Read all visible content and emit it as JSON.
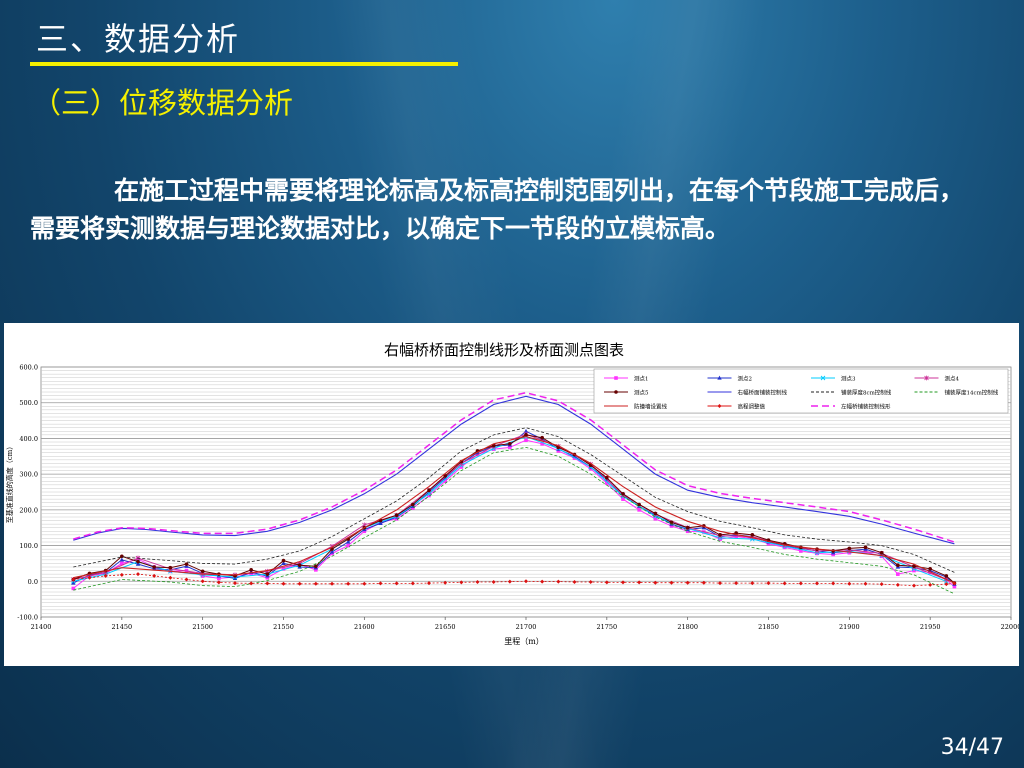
{
  "slide": {
    "section_title": "三、数据分析",
    "subsection_title": "（三）位移数据分析",
    "paragraph": "在施工过程中需要将理论标高及标高控制范围列出，在每个节段施工完成后，需要将实测数据与理论数据对比，以确定下一节段的立模标高。",
    "page_number": "34/47",
    "colors": {
      "title_underline": "#f5f000",
      "subtitle": "#f5f000",
      "background": "#12456b"
    }
  },
  "chart_data": {
    "type": "line",
    "title": "右幅桥桥面控制线形及桥面测点图表",
    "xlabel": "里程（m）",
    "ylabel": "至基准直线的高度（cm）",
    "xlim": [
      21400,
      22000
    ],
    "ylim": [
      -100,
      600
    ],
    "x_ticks": [
      21400,
      21450,
      21500,
      21550,
      21600,
      21650,
      21700,
      21750,
      21800,
      21850,
      21900,
      21950,
      22000
    ],
    "y_ticks": [
      -100,
      0,
      100,
      200,
      300,
      400,
      500,
      600
    ],
    "y_tick_labels": [
      "-100.0",
      "0.0",
      "100.0",
      "200.0",
      "300.0",
      "400.0",
      "500.0",
      "600.0"
    ],
    "grid": true,
    "legend_position": "top-right",
    "series": [
      {
        "name": "测点1",
        "color": "#ff33ff",
        "style": "marker",
        "marker": "square",
        "x": [
          21420,
          21430,
          21440,
          21450,
          21460,
          21470,
          21480,
          21490,
          21500,
          21510,
          21520,
          21530,
          21540,
          21550,
          21560,
          21570,
          21580,
          21590,
          21600,
          21610,
          21620,
          21630,
          21640,
          21650,
          21660,
          21670,
          21680,
          21690,
          21700,
          21710,
          21720,
          21730,
          21740,
          21750,
          21760,
          21770,
          21780,
          21790,
          21800,
          21810,
          21820,
          21830,
          21840,
          21850,
          21860,
          21870,
          21880,
          21890,
          21900,
          21910,
          21920,
          21930,
          21940,
          21950,
          21960,
          21965
        ],
        "y": [
          -20,
          15,
          22,
          50,
          62,
          40,
          28,
          30,
          15,
          8,
          12,
          22,
          10,
          35,
          48,
          32,
          78,
          100,
          140,
          165,
          175,
          205,
          240,
          280,
          320,
          355,
          370,
          375,
          395,
          385,
          365,
          345,
          315,
          275,
          230,
          200,
          175,
          155,
          140,
          138,
          118,
          125,
          120,
          105,
          95,
          85,
          78,
          75,
          80,
          82,
          70,
          20,
          30,
          25,
          5,
          -15
        ]
      },
      {
        "name": "测点2",
        "color": "#2233cc",
        "style": "marker",
        "marker": "triangle",
        "x": [
          21420,
          21430,
          21440,
          21450,
          21460,
          21470,
          21480,
          21490,
          21500,
          21510,
          21520,
          21530,
          21540,
          21550,
          21560,
          21570,
          21580,
          21590,
          21600,
          21610,
          21620,
          21630,
          21640,
          21650,
          21660,
          21670,
          21680,
          21690,
          21700,
          21710,
          21720,
          21730,
          21740,
          21750,
          21760,
          21770,
          21780,
          21790,
          21800,
          21810,
          21820,
          21830,
          21840,
          21850,
          21860,
          21870,
          21880,
          21890,
          21900,
          21910,
          21920,
          21930,
          21940,
          21950,
          21960,
          21965
        ],
        "y": [
          -5,
          18,
          25,
          60,
          48,
          35,
          32,
          42,
          22,
          15,
          8,
          25,
          15,
          50,
          40,
          38,
          82,
          110,
          145,
          162,
          180,
          210,
          250,
          290,
          330,
          360,
          378,
          382,
          420,
          398,
          370,
          350,
          320,
          285,
          240,
          210,
          185,
          160,
          145,
          150,
          125,
          130,
          125,
          110,
          100,
          92,
          85,
          80,
          85,
          90,
          75,
          40,
          38,
          30,
          12,
          -8
        ]
      },
      {
        "name": "测点3",
        "color": "#00ccff",
        "style": "marker",
        "marker": "x",
        "x": [
          21420,
          21440,
          21460,
          21480,
          21500,
          21520,
          21540,
          21560,
          21580,
          21600,
          21620,
          21640,
          21660,
          21680,
          21700,
          21720,
          21740,
          21760,
          21780,
          21800,
          21820,
          21840,
          21860,
          21880,
          21900,
          21920,
          21940,
          21960
        ],
        "y": [
          0,
          20,
          55,
          28,
          18,
          12,
          20,
          45,
          90,
          150,
          182,
          245,
          325,
          372,
          405,
          372,
          320,
          238,
          182,
          148,
          122,
          118,
          98,
          80,
          84,
          72,
          35,
          0
        ]
      },
      {
        "name": "测点4",
        "color": "#cc3399",
        "style": "marker",
        "marker": "star",
        "x": [
          21420,
          21440,
          21460,
          21480,
          21500,
          21520,
          21540,
          21560,
          21580,
          21600,
          21620,
          21640,
          21660,
          21680,
          21700,
          21720,
          21740,
          21760,
          21780,
          21800,
          21820,
          21840,
          21860,
          21880,
          21900,
          21920,
          21940,
          21960
        ],
        "y": [
          5,
          25,
          65,
          35,
          22,
          18,
          28,
          50,
          98,
          158,
          185,
          255,
          330,
          378,
          412,
          378,
          328,
          242,
          188,
          150,
          128,
          125,
          102,
          85,
          88,
          78,
          40,
          5
        ]
      },
      {
        "name": "测点5",
        "color": "#660000",
        "style": "marker",
        "marker": "circle",
        "x": [
          21420,
          21430,
          21440,
          21450,
          21460,
          21470,
          21480,
          21490,
          21500,
          21510,
          21520,
          21530,
          21540,
          21550,
          21560,
          21570,
          21580,
          21590,
          21600,
          21610,
          21620,
          21630,
          21640,
          21650,
          21660,
          21670,
          21680,
          21690,
          21700,
          21710,
          21720,
          21730,
          21740,
          21750,
          21760,
          21770,
          21780,
          21790,
          21800,
          21810,
          21820,
          21830,
          21840,
          21850,
          21860,
          21870,
          21880,
          21890,
          21900,
          21910,
          21920,
          21930,
          21940,
          21950,
          21960,
          21965
        ],
        "y": [
          5,
          22,
          30,
          70,
          55,
          40,
          38,
          48,
          28,
          20,
          15,
          32,
          20,
          58,
          45,
          42,
          90,
          118,
          150,
          170,
          185,
          215,
          255,
          295,
          335,
          365,
          380,
          385,
          410,
          402,
          375,
          355,
          325,
          290,
          245,
          215,
          190,
          165,
          150,
          155,
          130,
          135,
          130,
          115,
          105,
          95,
          90,
          85,
          92,
          95,
          80,
          45,
          42,
          35,
          15,
          -5
        ]
      },
      {
        "name": "右幅桥面铺装控制线",
        "color": "#3333dd",
        "style": "solid",
        "x": [
          21420,
          21435,
          21450,
          21465,
          21480,
          21500,
          21520,
          21540,
          21560,
          21580,
          21600,
          21620,
          21640,
          21660,
          21680,
          21700,
          21720,
          21740,
          21760,
          21780,
          21800,
          21820,
          21840,
          21860,
          21880,
          21900,
          21920,
          21940,
          21965
        ],
        "y": [
          115,
          135,
          148,
          145,
          138,
          130,
          128,
          140,
          165,
          200,
          245,
          300,
          370,
          440,
          495,
          518,
          495,
          440,
          370,
          300,
          255,
          235,
          220,
          208,
          195,
          182,
          160,
          135,
          105
        ]
      },
      {
        "name": "铺装厚度8cm控制线",
        "color": "#222222",
        "style": "dashed",
        "x": [
          21420,
          21450,
          21480,
          21500,
          21520,
          21540,
          21560,
          21580,
          21600,
          21620,
          21640,
          21660,
          21680,
          21700,
          21720,
          21740,
          21760,
          21780,
          21800,
          21820,
          21840,
          21860,
          21880,
          21900,
          21920,
          21940,
          21965
        ],
        "y": [
          40,
          68,
          58,
          50,
          48,
          62,
          85,
          125,
          175,
          225,
          290,
          365,
          410,
          430,
          405,
          355,
          295,
          235,
          195,
          168,
          150,
          130,
          118,
          110,
          100,
          75,
          25
        ]
      },
      {
        "name": "铺装厚度14cm控制线",
        "color": "#229922",
        "style": "dashed",
        "x": [
          21420,
          21450,
          21480,
          21500,
          21520,
          21540,
          21560,
          21580,
          21600,
          21620,
          21640,
          21660,
          21680,
          21700,
          21720,
          21740,
          21760,
          21780,
          21800,
          21820,
          21840,
          21860,
          21880,
          21900,
          21920,
          21940,
          21965
        ],
        "y": [
          -25,
          5,
          -2,
          -12,
          -15,
          2,
          28,
          70,
          122,
          172,
          238,
          310,
          360,
          375,
          350,
          300,
          238,
          180,
          140,
          112,
          95,
          75,
          62,
          52,
          42,
          18,
          -35
        ]
      },
      {
        "name": "防撞墙设置线",
        "color": "#cc2222",
        "style": "solid",
        "x": [
          21420,
          21450,
          21480,
          21500,
          21520,
          21540,
          21560,
          21580,
          21600,
          21620,
          21640,
          21660,
          21680,
          21700,
          21720,
          21740,
          21760,
          21780,
          21800,
          21820,
          21840,
          21860,
          21880,
          21900,
          21920,
          21940,
          21965
        ],
        "y": [
          10,
          38,
          28,
          20,
          18,
          30,
          55,
          95,
          150,
          200,
          265,
          338,
          385,
          405,
          380,
          330,
          265,
          208,
          168,
          140,
          122,
          102,
          90,
          82,
          72,
          48,
          -5
        ]
      },
      {
        "name": "高程调整值",
        "color": "#dd1111",
        "style": "dotmarker",
        "marker": "diamond",
        "x": [
          21420,
          21430,
          21440,
          21450,
          21460,
          21470,
          21480,
          21490,
          21500,
          21510,
          21520,
          21530,
          21540,
          21550,
          21560,
          21570,
          21580,
          21590,
          21600,
          21610,
          21620,
          21630,
          21640,
          21650,
          21660,
          21670,
          21680,
          21690,
          21700,
          21710,
          21720,
          21730,
          21740,
          21750,
          21760,
          21770,
          21780,
          21790,
          21800,
          21810,
          21820,
          21830,
          21840,
          21850,
          21860,
          21870,
          21880,
          21890,
          21900,
          21910,
          21920,
          21930,
          21940,
          21950,
          21960,
          21965
        ],
        "y": [
          5,
          10,
          15,
          18,
          20,
          15,
          10,
          5,
          0,
          -3,
          -5,
          -6,
          -6,
          -7,
          -7,
          -7,
          -7,
          -7,
          -7,
          -6,
          -6,
          -6,
          -5,
          -4,
          -3,
          -2,
          -2,
          -1,
          0,
          -1,
          -1,
          -2,
          -2,
          -3,
          -3,
          -3,
          -4,
          -4,
          -4,
          -4,
          -5,
          -5,
          -5,
          -5,
          -6,
          -6,
          -6,
          -6,
          -7,
          -7,
          -8,
          -10,
          -12,
          -10,
          -8,
          -6
        ]
      },
      {
        "name": "左幅桥铺装控制线形",
        "color": "#ee22ee",
        "style": "longdash",
        "x": [
          21420,
          21435,
          21450,
          21465,
          21480,
          21500,
          21520,
          21540,
          21560,
          21580,
          21600,
          21620,
          21640,
          21660,
          21680,
          21700,
          21720,
          21740,
          21760,
          21780,
          21800,
          21820,
          21840,
          21860,
          21880,
          21900,
          21920,
          21940,
          21965
        ],
        "y": [
          118,
          138,
          150,
          148,
          142,
          134,
          134,
          146,
          172,
          208,
          255,
          312,
          382,
          452,
          508,
          528,
          505,
          452,
          382,
          312,
          268,
          246,
          232,
          220,
          208,
          195,
          172,
          146,
          110
        ]
      }
    ]
  }
}
